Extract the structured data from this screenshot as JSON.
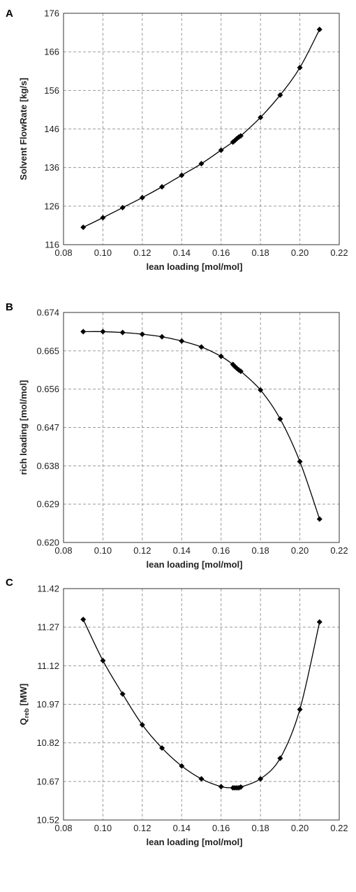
{
  "chart_data": [
    {
      "panel": "A",
      "type": "line",
      "xlabel": "lean loading [mol/mol]",
      "ylabel": "Solvent FlowRate [kg/s]",
      "xlim": [
        0.08,
        0.22
      ],
      "ylim": [
        116,
        176
      ],
      "xticks": [
        "0.08",
        "0.10",
        "0.12",
        "0.14",
        "0.16",
        "0.18",
        "0.20",
        "0.22"
      ],
      "yticks": [
        "116",
        "126",
        "136",
        "146",
        "156",
        "166",
        "176"
      ],
      "grid": true,
      "marker": "diamond",
      "x": [
        0.09,
        0.1,
        0.11,
        0.12,
        0.13,
        0.14,
        0.15,
        0.16,
        0.166,
        0.167,
        0.168,
        0.169,
        0.17,
        0.18,
        0.19,
        0.2,
        0.21
      ],
      "y": [
        120.5,
        123.0,
        125.6,
        128.2,
        131.0,
        134.0,
        137.0,
        140.5,
        142.6,
        143.0,
        143.5,
        143.9,
        144.2,
        149.0,
        154.8,
        161.9,
        171.8
      ]
    },
    {
      "panel": "B",
      "type": "line",
      "xlabel": "lean loading [mol/mol]",
      "ylabel": "rich loading [mol/mol]",
      "xlim": [
        0.08,
        0.22
      ],
      "ylim": [
        0.62,
        0.674
      ],
      "xticks": [
        "0.08",
        "0.10",
        "0.12",
        "0.14",
        "0.16",
        "0.18",
        "0.20",
        "0.22"
      ],
      "yticks": [
        "0.620",
        "0.629",
        "0.638",
        "0.647",
        "0.656",
        "0.665",
        "0.674"
      ],
      "grid": true,
      "marker": "diamond",
      "x": [
        0.09,
        0.1,
        0.11,
        0.12,
        0.13,
        0.14,
        0.15,
        0.16,
        0.166,
        0.167,
        0.168,
        0.169,
        0.17,
        0.18,
        0.19,
        0.2,
        0.21
      ],
      "y": [
        0.6695,
        0.6695,
        0.6693,
        0.6689,
        0.6683,
        0.6673,
        0.6659,
        0.6637,
        0.6618,
        0.6613,
        0.6609,
        0.6605,
        0.6602,
        0.6558,
        0.649,
        0.639,
        0.6255
      ]
    },
    {
      "panel": "C",
      "type": "line",
      "xlabel": "lean loading [mol/mol]",
      "ylabel": "Q",
      "ylabel_sub": "reb",
      "ylabel_unit": " [MW]",
      "xlim": [
        0.08,
        0.22
      ],
      "ylim": [
        10.52,
        11.42
      ],
      "xticks": [
        "0.08",
        "0.10",
        "0.12",
        "0.14",
        "0.16",
        "0.18",
        "0.20",
        "0.22"
      ],
      "yticks": [
        "10.52",
        "10.67",
        "10.82",
        "10.97",
        "11.12",
        "11.27",
        "11.42"
      ],
      "grid": true,
      "marker": "diamond",
      "x": [
        0.09,
        0.1,
        0.11,
        0.12,
        0.13,
        0.14,
        0.15,
        0.16,
        0.166,
        0.167,
        0.168,
        0.169,
        0.17,
        0.18,
        0.19,
        0.2,
        0.21
      ],
      "y": [
        11.3,
        11.14,
        11.01,
        10.89,
        10.8,
        10.73,
        10.68,
        10.65,
        10.645,
        10.645,
        10.645,
        10.645,
        10.648,
        10.68,
        10.76,
        10.95,
        11.29
      ]
    }
  ]
}
